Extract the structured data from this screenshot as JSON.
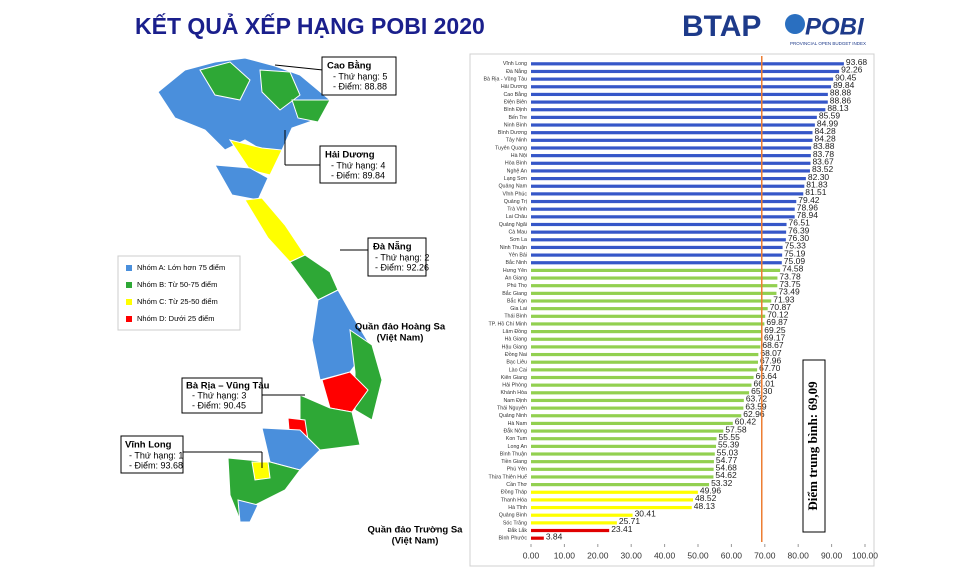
{
  "header": {
    "title": "KẾT QUẢ XẾP HẠNG POBI 2020"
  },
  "logos": {
    "btap": "BTAP",
    "pobi": "POBI",
    "pobi_caption": "PROVINCIAL OPEN BUDGET INDEX"
  },
  "map": {
    "legend": [
      {
        "label": "Nhóm A: Lớn hơn 75 điểm",
        "color": "#4a8fdc"
      },
      {
        "label": "Nhóm B: Từ 50-75 điểm",
        "color": "#2ea836"
      },
      {
        "label": "Nhóm C: Từ 25-50 điểm",
        "color": "#ffff00"
      },
      {
        "label": "Nhóm D: Dưới 25 điểm",
        "color": "#ff0000"
      }
    ],
    "callouts": [
      {
        "name": "Cao Bằng",
        "rank": "- Thứ hạng: 5",
        "score": "- Điểm: 88.88"
      },
      {
        "name": "Hải Dương",
        "rank": "- Thứ hạng: 4",
        "score": "- Điểm: 89.84"
      },
      {
        "name": "Đà Nẵng",
        "rank": "- Thứ hạng: 2",
        "score": "- Điểm: 92.26"
      },
      {
        "name": "Bà Rịa – Vũng Tàu",
        "rank": "- Thứ hạng: 3",
        "score": "- Điểm: 90.45"
      },
      {
        "name": "Vĩnh Long",
        "rank": "- Thứ hạng: 1",
        "score": "- Điểm: 93.68"
      }
    ],
    "islands": [
      {
        "name": "Quần đảo Hoàng Sa",
        "country": "(Việt Nam)"
      },
      {
        "name": "Quần đảo Trường Sa",
        "country": "(Việt Nam)"
      }
    ]
  },
  "chart_data": {
    "type": "hbar",
    "categories": [
      "Vĩnh Long",
      "Đà Nẵng",
      "Bà Rịa - Vũng Tàu",
      "Hải Dương",
      "Cao Bằng",
      "Điện Biên",
      "Bình Định",
      "Bến Tre",
      "Ninh Bình",
      "Bình Dương",
      "Tây Ninh",
      "Tuyên Quang",
      "Hà Nội",
      "Hòa Bình",
      "Nghệ An",
      "Lạng Sơn",
      "Quảng Nam",
      "Vĩnh Phúc",
      "Quảng Trị",
      "Trà Vinh",
      "Lai Châu",
      "Quảng Ngãi",
      "Cà Mau",
      "Sơn La",
      "Ninh Thuận",
      "Yên Bái",
      "Bắc Ninh",
      "Hưng Yên",
      "An Giang",
      "Phú Thọ",
      "Bắc Giang",
      "Bắc Kạn",
      "Gia Lai",
      "Thái Bình",
      "TP. Hồ Chí Minh",
      "Lâm Đồng",
      "Hà Giang",
      "Hậu Giang",
      "Đồng Nai",
      "Bạc Liêu",
      "Lào Cai",
      "Kiên Giang",
      "Hải Phòng",
      "Khánh Hòa",
      "Nam Định",
      "Thái Nguyên",
      "Quảng Ninh",
      "Hà Nam",
      "Đắk Nông",
      "Kon Tum",
      "Long An",
      "Bình Thuận",
      "Tiền Giang",
      "Phú Yên",
      "Thừa Thiên Huế",
      "Cần Thơ",
      "Đồng Tháp",
      "Thanh Hóa",
      "Hà Tĩnh",
      "Quảng Bình",
      "Sóc Trăng",
      "Đắk Lắk",
      "Bình Phước"
    ],
    "values": [
      93.68,
      92.26,
      90.45,
      89.84,
      88.88,
      88.86,
      88.13,
      85.59,
      84.99,
      84.28,
      84.28,
      83.88,
      83.78,
      83.67,
      83.52,
      82.3,
      81.83,
      81.51,
      79.42,
      78.96,
      78.94,
      76.51,
      76.39,
      76.3,
      75.33,
      75.19,
      75.09,
      74.58,
      73.78,
      73.75,
      73.49,
      71.93,
      70.87,
      70.12,
      69.87,
      69.25,
      69.17,
      68.67,
      68.07,
      67.96,
      67.7,
      66.64,
      66.01,
      65.3,
      63.72,
      63.59,
      62.96,
      60.42,
      57.58,
      55.55,
      55.39,
      55.03,
      54.77,
      54.68,
      54.62,
      53.32,
      49.96,
      48.52,
      48.13,
      30.41,
      25.71,
      23.41,
      3.84
    ],
    "value_labels": [
      "93.68",
      "92.26",
      "90.45",
      "89.84",
      "88.88",
      "88.86",
      "88.13",
      "85.59",
      "84.99",
      "84.28",
      "84.28",
      "83.88",
      "83.78",
      "83.67",
      "83.52",
      "82.30",
      "81.83",
      "81.51",
      "79.42",
      "78.96",
      "78.94",
      "76.51",
      "76.39",
      "76.30",
      "75.33",
      "75.19",
      "75.09",
      "74.58",
      "73.78",
      "73.75",
      "73.49",
      "71.93",
      "70.87",
      "70.12",
      "69.87",
      "69.25",
      "69.17",
      "68.67",
      "68.07",
      "67.96",
      "67.70",
      "66.64",
      "66.01",
      "65.30",
      "63.72",
      "63.59",
      "62.96",
      "60.42",
      "57.58",
      "55.55",
      "55.39",
      "55.03",
      "54.77",
      "54.68",
      "54.62",
      "53.32",
      "49.96",
      "48.52",
      "48.13",
      "30.41",
      "25.71",
      "23.41",
      "3.84"
    ],
    "colors": [
      "#3657c8",
      "#3657c8",
      "#3657c8",
      "#3657c8",
      "#3657c8",
      "#3657c8",
      "#3657c8",
      "#3657c8",
      "#3657c8",
      "#3657c8",
      "#3657c8",
      "#3657c8",
      "#3657c8",
      "#3657c8",
      "#3657c8",
      "#3657c8",
      "#3657c8",
      "#3657c8",
      "#3657c8",
      "#3657c8",
      "#3657c8",
      "#3657c8",
      "#3657c8",
      "#3657c8",
      "#3657c8",
      "#3657c8",
      "#3657c8",
      "#92d050",
      "#92d050",
      "#92d050",
      "#92d050",
      "#92d050",
      "#92d050",
      "#92d050",
      "#92d050",
      "#92d050",
      "#92d050",
      "#92d050",
      "#92d050",
      "#92d050",
      "#92d050",
      "#92d050",
      "#92d050",
      "#92d050",
      "#92d050",
      "#92d050",
      "#92d050",
      "#92d050",
      "#92d050",
      "#92d050",
      "#92d050",
      "#92d050",
      "#92d050",
      "#92d050",
      "#92d050",
      "#92d050",
      "#ffff00",
      "#ffff00",
      "#ffff00",
      "#ffff00",
      "#ffff00",
      "#e00000",
      "#e00000"
    ],
    "xlim": [
      0,
      100
    ],
    "xticks": [
      {
        "value": 0,
        "label": "0.00"
      },
      {
        "value": 10,
        "label": "10.00"
      },
      {
        "value": 20,
        "label": "20.00"
      },
      {
        "value": 30,
        "label": "30.00"
      },
      {
        "value": 40,
        "label": "40.00"
      },
      {
        "value": 50,
        "label": "50.00"
      },
      {
        "value": 60,
        "label": "60.00"
      },
      {
        "value": 70,
        "label": "70.00"
      },
      {
        "value": 80,
        "label": "80.00"
      },
      {
        "value": 90,
        "label": "90.00"
      },
      {
        "value": 100,
        "label": "100.00"
      }
    ],
    "reference_line": {
      "value": 69.09,
      "label": "Điểm trung bình: 69,09",
      "color": "#ed7d31"
    }
  }
}
